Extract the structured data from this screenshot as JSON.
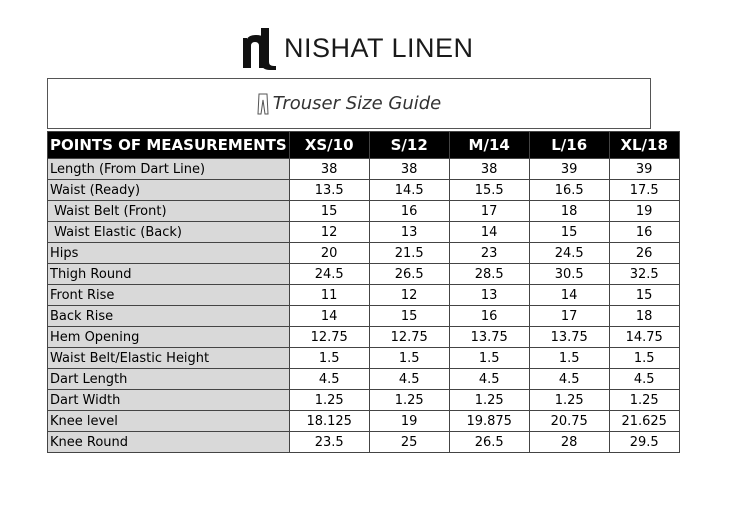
{
  "header": {
    "brand": "NISHAT LINEN"
  },
  "title": "Trouser Size Guide",
  "table": {
    "columns": [
      "POINTS OF MEASUREMENTS",
      "XS/10",
      "S/12",
      "M/14",
      "L/16",
      "XL/18"
    ],
    "rows": [
      [
        "Length (From Dart Line)",
        38,
        38,
        38,
        39,
        39
      ],
      [
        "Waist (Ready)",
        13.5,
        14.5,
        15.5,
        16.5,
        17.5
      ],
      [
        " Waist Belt (Front)",
        15,
        16,
        17,
        18,
        19
      ],
      [
        " Waist Elastic (Back)",
        12,
        13,
        14,
        15,
        16
      ],
      [
        "Hips",
        20,
        21.5,
        23,
        24.5,
        26
      ],
      [
        "Thigh Round",
        24.5,
        26.5,
        28.5,
        30.5,
        32.5
      ],
      [
        "Front Rise",
        11,
        12,
        13,
        14,
        15
      ],
      [
        "Back Rise",
        14,
        15,
        16,
        17,
        18
      ],
      [
        "Hem Opening",
        12.75,
        12.75,
        13.75,
        13.75,
        14.75
      ],
      [
        "Waist Belt/Elastic Height",
        1.5,
        1.5,
        1.5,
        1.5,
        1.5
      ],
      [
        "Dart Length",
        4.5,
        4.5,
        4.5,
        4.5,
        4.5
      ],
      [
        "Dart Width",
        1.25,
        1.25,
        1.25,
        1.25,
        1.25
      ],
      [
        "Knee level",
        18.125,
        19,
        19.875,
        20.75,
        21.625
      ],
      [
        "Knee Round",
        23.5,
        25,
        26.5,
        28,
        29.5
      ]
    ]
  }
}
